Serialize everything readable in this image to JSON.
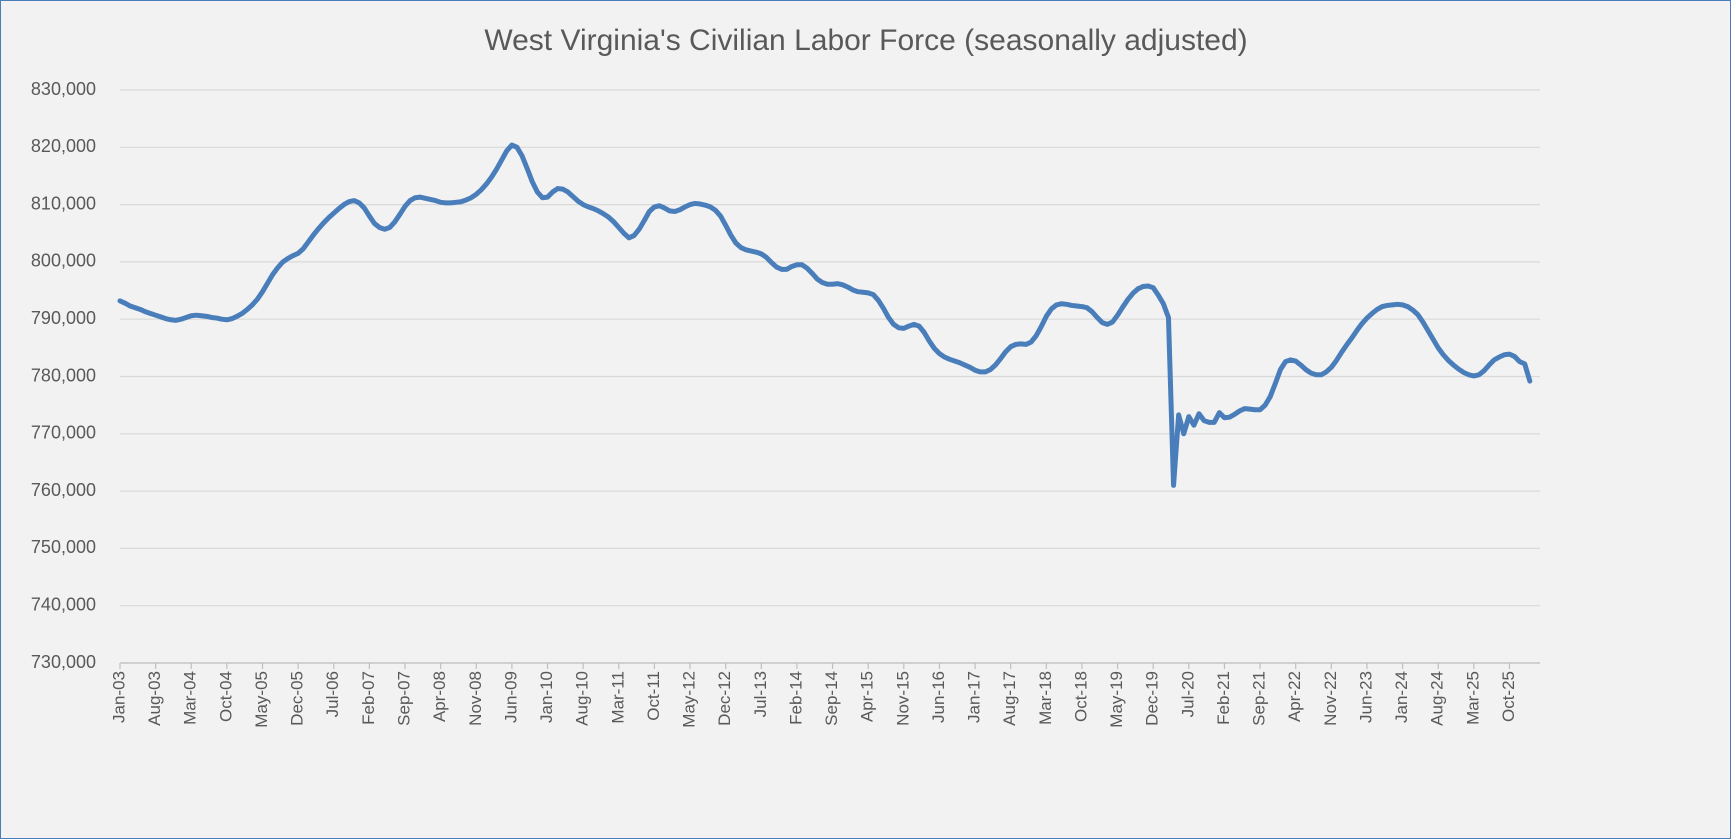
{
  "chart_data": {
    "type": "line",
    "title": "West Virginia's Civilian Labor Force (seasonally adjusted)",
    "color": "#4a7ebb",
    "grid": true,
    "ylim": [
      730000,
      830000
    ],
    "yticks": [
      {
        "value": 730000,
        "label": "730,000"
      },
      {
        "value": 740000,
        "label": "740,000"
      },
      {
        "value": 750000,
        "label": "750,000"
      },
      {
        "value": 760000,
        "label": "760,000"
      },
      {
        "value": 770000,
        "label": "770,000"
      },
      {
        "value": 780000,
        "label": "780,000"
      },
      {
        "value": 790000,
        "label": "790,000"
      },
      {
        "value": 800000,
        "label": "800,000"
      },
      {
        "value": 810000,
        "label": "810,000"
      },
      {
        "value": 820000,
        "label": "820,000"
      },
      {
        "value": 830000,
        "label": "830,000"
      }
    ],
    "categories": [
      "Jan-03",
      null,
      null,
      null,
      null,
      null,
      null,
      "Aug-03",
      null,
      null,
      null,
      null,
      null,
      null,
      "Mar-04",
      null,
      null,
      null,
      null,
      null,
      null,
      "Oct-04",
      null,
      null,
      null,
      null,
      null,
      null,
      "May-05",
      null,
      null,
      null,
      null,
      null,
      null,
      "Dec-05",
      null,
      null,
      null,
      null,
      null,
      null,
      "Jul-06",
      null,
      null,
      null,
      null,
      null,
      null,
      "Feb-07",
      null,
      null,
      null,
      null,
      null,
      null,
      "Sep-07",
      null,
      null,
      null,
      null,
      null,
      null,
      "Apr-08",
      null,
      null,
      null,
      null,
      null,
      null,
      "Nov-08",
      null,
      null,
      null,
      null,
      null,
      null,
      "Jun-09",
      null,
      null,
      null,
      null,
      null,
      null,
      "Jan-10",
      null,
      null,
      null,
      null,
      null,
      null,
      "Aug-10",
      null,
      null,
      null,
      null,
      null,
      null,
      "Mar-11",
      null,
      null,
      null,
      null,
      null,
      null,
      "Oct-11",
      null,
      null,
      null,
      null,
      null,
      null,
      "May-12",
      null,
      null,
      null,
      null,
      null,
      null,
      "Dec-12",
      null,
      null,
      null,
      null,
      null,
      null,
      "Jul-13",
      null,
      null,
      null,
      null,
      null,
      null,
      "Feb-14",
      null,
      null,
      null,
      null,
      null,
      null,
      "Sep-14",
      null,
      null,
      null,
      null,
      null,
      null,
      "Apr-15",
      null,
      null,
      null,
      null,
      null,
      null,
      "Nov-15",
      null,
      null,
      null,
      null,
      null,
      null,
      "Jun-16",
      null,
      null,
      null,
      null,
      null,
      null,
      "Jan-17",
      null,
      null,
      null,
      null,
      null,
      null,
      "Aug-17",
      null,
      null,
      null,
      null,
      null,
      null,
      "Mar-18",
      null,
      null,
      null,
      null,
      null,
      null,
      "Oct-18",
      null,
      null,
      null,
      null,
      null,
      null,
      "May-19",
      null,
      null,
      null,
      null,
      null,
      null,
      "Dec-19",
      null,
      null,
      null,
      null,
      null,
      null,
      "Jul-20",
      null,
      null,
      null,
      null,
      null,
      null,
      "Feb-21",
      null,
      null,
      null,
      null,
      null,
      null,
      "Sep-21",
      null,
      null,
      null,
      null,
      null,
      null,
      "Apr-22",
      null,
      null,
      null,
      null,
      null,
      null,
      "Nov-22",
      null,
      null,
      null,
      null,
      null,
      null,
      "Jun-23",
      null,
      null,
      null,
      null,
      null,
      null,
      "Jan-24",
      null,
      null,
      null,
      null,
      null,
      null,
      "Aug-24",
      null,
      null,
      null,
      null,
      null,
      null,
      "Mar-25",
      null,
      null,
      null,
      null,
      null,
      null,
      "Oct-25",
      null,
      null,
      null,
      null
    ],
    "values": [
      793200,
      792800,
      792300,
      792000,
      791700,
      791300,
      791000,
      790700,
      790400,
      790100,
      789900,
      789800,
      790000,
      790300,
      790600,
      790700,
      790600,
      790500,
      790300,
      790200,
      790000,
      789900,
      790100,
      790500,
      791000,
      791700,
      792500,
      793500,
      794800,
      796300,
      797800,
      799000,
      800000,
      800600,
      801100,
      801500,
      802300,
      803500,
      804700,
      805800,
      806800,
      807700,
      808500,
      809300,
      810000,
      810500,
      810700,
      810300,
      809400,
      808000,
      806700,
      806000,
      805700,
      806000,
      807000,
      808300,
      809700,
      810700,
      811200,
      811300,
      811100,
      810900,
      810700,
      810400,
      810300,
      810300,
      810400,
      810500,
      810800,
      811200,
      811800,
      812600,
      813600,
      814800,
      816200,
      817800,
      819400,
      820400,
      820000,
      818500,
      816300,
      814000,
      812200,
      811200,
      811300,
      812200,
      812800,
      812700,
      812200,
      811400,
      810600,
      810000,
      809600,
      809300,
      808900,
      808400,
      807800,
      807000,
      806000,
      805000,
      804200,
      804600,
      805700,
      807200,
      808800,
      809600,
      809800,
      809400,
      808900,
      808800,
      809100,
      809600,
      810000,
      810200,
      810100,
      809900,
      809600,
      809000,
      808000,
      806400,
      804700,
      803300,
      802500,
      802100,
      801900,
      801700,
      801400,
      800800,
      799900,
      799100,
      798700,
      798700,
      799200,
      799500,
      799500,
      798900,
      798000,
      797000,
      796400,
      796100,
      796100,
      796200,
      796000,
      795600,
      795100,
      794800,
      794700,
      794600,
      794300,
      793300,
      791900,
      790300,
      789100,
      788500,
      788400,
      788800,
      789100,
      788800,
      787700,
      786200,
      784900,
      784000,
      783400,
      783000,
      782700,
      782400,
      782000,
      781600,
      781100,
      780800,
      780800,
      781200,
      782000,
      783100,
      784300,
      785200,
      785600,
      785700,
      785600,
      786000,
      787100,
      788700,
      790500,
      791800,
      792500,
      792700,
      792600,
      792400,
      792300,
      792200,
      792000,
      791300,
      790300,
      789400,
      789100,
      789500,
      790700,
      792100,
      793400,
      794500,
      795300,
      795700,
      795800,
      795500,
      794200,
      792700,
      790300,
      761000,
      773300,
      770000,
      773000,
      771500,
      773500,
      772300,
      772000,
      772000,
      773700,
      772800,
      772900,
      773400,
      774000,
      774400,
      774300,
      774200,
      774200,
      775000,
      776500,
      778800,
      781200,
      782600,
      782900,
      782700,
      782000,
      781200,
      780600,
      780300,
      780300,
      780800,
      781600,
      782800,
      784200,
      785500,
      786700,
      788000,
      789200,
      790200,
      791000,
      791700,
      792200,
      792400,
      792500,
      792600,
      792500,
      792200,
      791600,
      790800,
      789500,
      788000,
      786500,
      785000,
      783800,
      782800,
      782000,
      781300,
      780700,
      780300,
      780100,
      780300,
      781000,
      782000,
      782900,
      783400,
      783800,
      783900,
      783500,
      782600,
      782200,
      779200
    ]
  }
}
